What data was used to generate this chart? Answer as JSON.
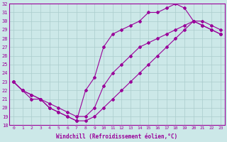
{
  "xlabel": "Windchill (Refroidissement éolien,°C)",
  "bg_color": "#cce8e8",
  "line_color": "#990099",
  "grid_color": "#aacccc",
  "xlim": [
    -0.5,
    23.5
  ],
  "ylim": [
    18,
    32
  ],
  "xticks": [
    0,
    1,
    2,
    3,
    4,
    5,
    6,
    7,
    8,
    9,
    10,
    11,
    12,
    13,
    14,
    15,
    16,
    17,
    18,
    19,
    20,
    21,
    22,
    23
  ],
  "yticks": [
    18,
    19,
    20,
    21,
    22,
    23,
    24,
    25,
    26,
    27,
    28,
    29,
    30,
    31,
    32
  ],
  "curve_top_x": [
    0,
    1,
    2,
    3,
    4,
    5,
    6,
    7,
    8,
    9,
    10,
    11,
    12,
    13,
    14,
    15,
    16,
    17,
    18,
    19,
    20,
    21,
    22,
    23
  ],
  "curve_top_y": [
    23,
    22,
    21,
    21,
    20.5,
    20,
    19.5,
    19,
    19,
    20,
    22.5,
    24,
    25,
    26,
    27,
    27.5,
    28,
    28.5,
    29,
    29.5,
    30,
    29.5,
    29,
    28.5
  ],
  "curve_mid_x": [
    0,
    1,
    2,
    3,
    4,
    5,
    6,
    7,
    8,
    9,
    10,
    11,
    12,
    13,
    14,
    15,
    16,
    17,
    18,
    19,
    20,
    21,
    22,
    23
  ],
  "curve_mid_y": [
    23,
    22,
    21.5,
    21,
    20,
    19.5,
    19,
    18.5,
    22,
    23.5,
    27,
    28.5,
    29,
    29.5,
    30,
    31,
    31,
    31.5,
    32,
    31.5,
    30,
    30,
    29.5,
    29
  ],
  "curve_bot_x": [
    0,
    1,
    2,
    3,
    4,
    5,
    6,
    7,
    8,
    9,
    10,
    11,
    12,
    13,
    14,
    15,
    16,
    17,
    18,
    19,
    20,
    21,
    22,
    23
  ],
  "curve_bot_y": [
    23,
    22,
    21.5,
    21,
    20,
    19.5,
    19,
    18.5,
    18.5,
    19,
    20,
    21,
    22,
    23,
    24,
    25,
    26,
    27,
    28,
    29,
    30,
    29.5,
    29,
    28.5
  ]
}
